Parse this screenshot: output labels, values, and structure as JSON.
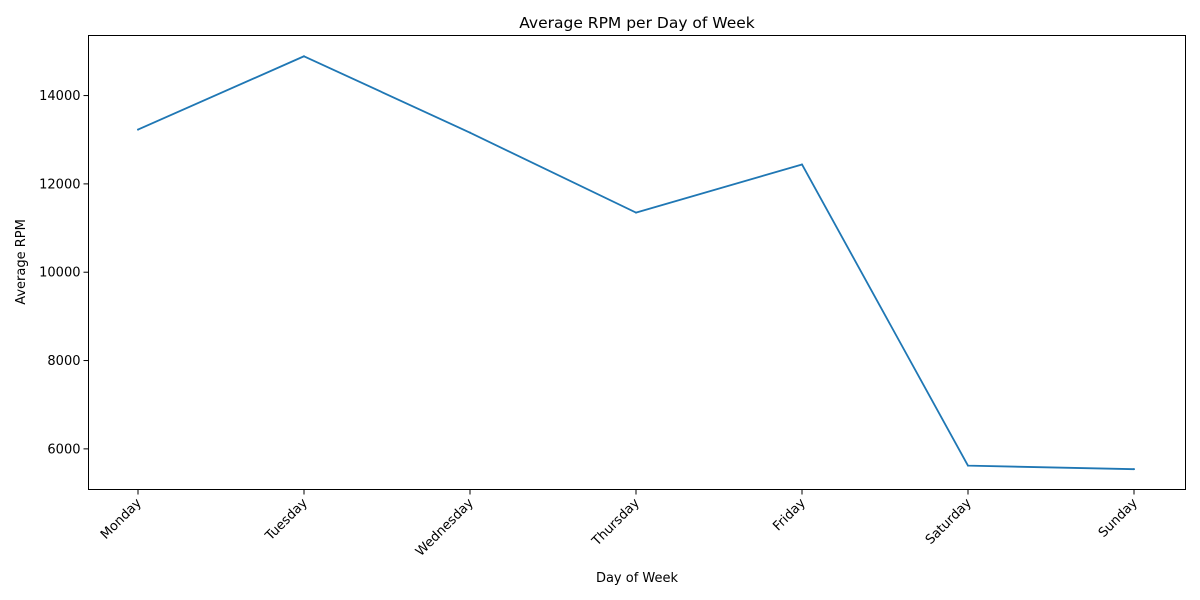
{
  "chart_data": {
    "type": "line",
    "title": "Average RPM per Day of Week",
    "xlabel": "Day of Week",
    "ylabel": "Average RPM",
    "categories": [
      "Monday",
      "Tuesday",
      "Wednesday",
      "Thursday",
      "Friday",
      "Saturday",
      "Sunday"
    ],
    "series": [
      {
        "values": [
          13230,
          14890,
          13160,
          11350,
          12440,
          5620,
          5540
        ],
        "color": "#1f77b4"
      }
    ],
    "ylim": [
      5080,
      15360
    ],
    "yticks": [
      6000,
      8000,
      10000,
      12000,
      14000
    ],
    "ytick_labels": [
      "6000",
      "8000",
      "10000",
      "12000",
      "14000"
    ],
    "grid": false,
    "legend": "none",
    "xtick_rotation": 45
  }
}
